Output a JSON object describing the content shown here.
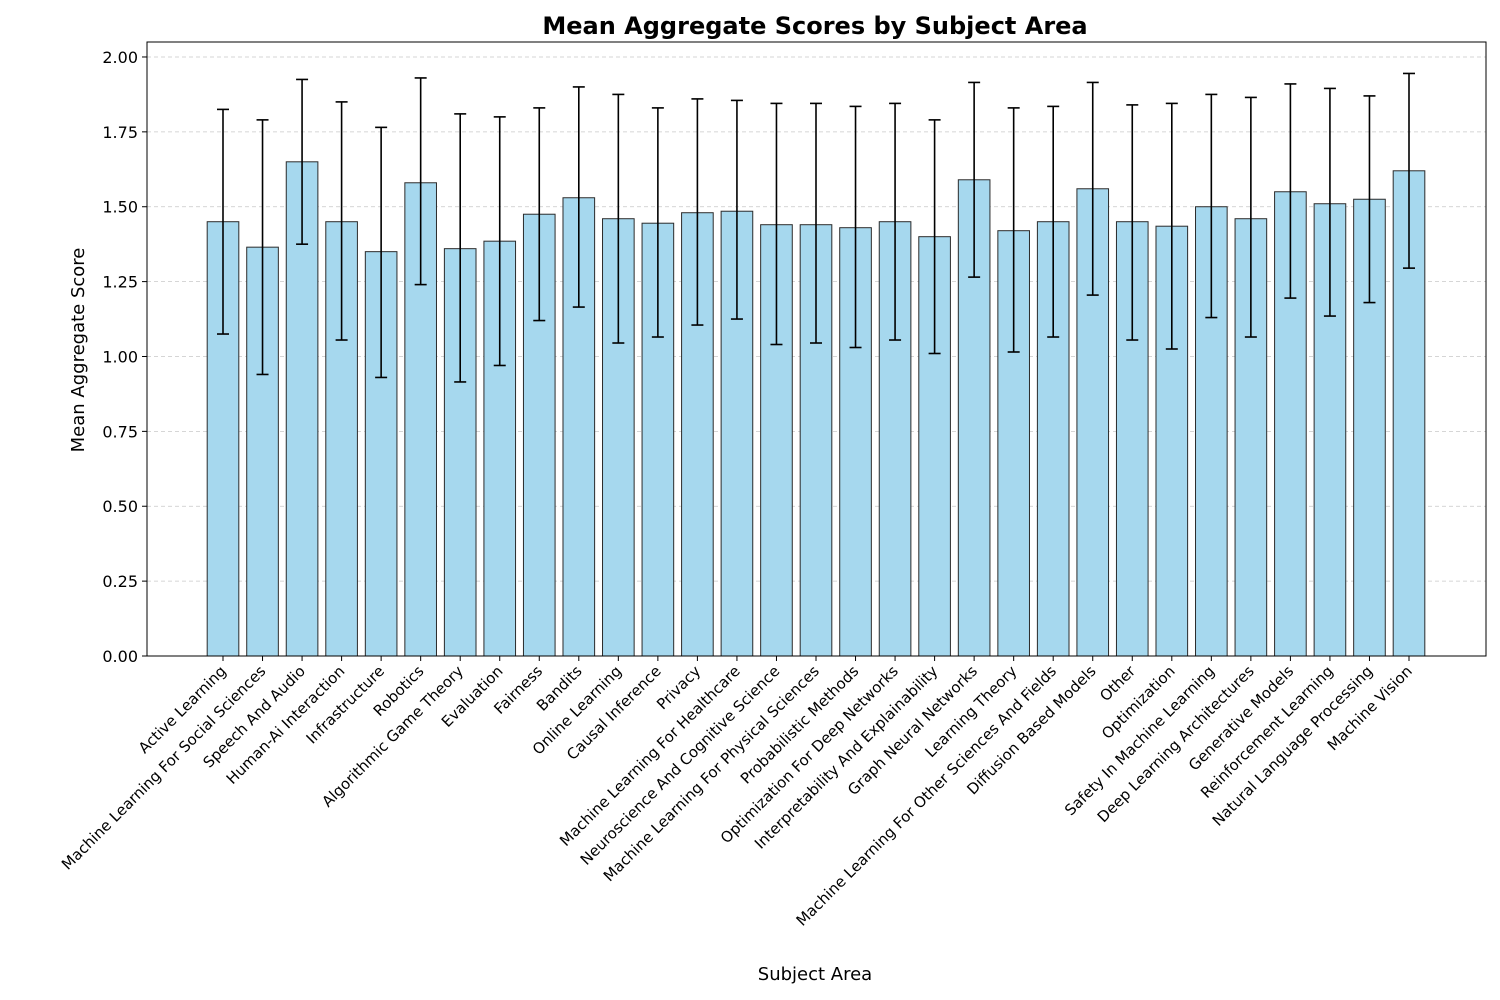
{
  "chart_data": {
    "type": "bar",
    "title": "Mean Aggregate Scores by Subject Area",
    "xlabel": "Subject Area",
    "ylabel": "Mean Aggregate Score",
    "ylim": [
      0,
      2.05
    ],
    "yticks": [
      "0.00",
      "0.25",
      "0.50",
      "0.75",
      "1.00",
      "1.25",
      "1.50",
      "1.75",
      "2.00"
    ],
    "grid": "horizontal dashed",
    "bar_color": "#a6d8ee",
    "bar_edge_color": "#2b2b2b",
    "error_bar_color": "#000000",
    "grid_color": "#c8c8c8",
    "categories": [
      "Active Learning",
      "Machine Learning For Social Sciences",
      "Speech And Audio",
      "Human-Ai Interaction",
      "Infrastructure",
      "Robotics",
      "Algorithmic Game Theory",
      "Evaluation",
      "Fairness",
      "Bandits",
      "Online Learning",
      "Causal Inference",
      "Privacy",
      "Machine Learning For Healthcare",
      "Neuroscience And Cognitive Science",
      "Machine Learning For Physical Sciences",
      "Probabilistic Methods",
      "Optimization For Deep Networks",
      "Interpretability And Explainability",
      "Graph Neural Networks",
      "Learning Theory",
      "Machine Learning For Other Sciences And Fields",
      "Diffusion Based Models",
      "Other",
      "Optimization",
      "Safety In Machine Learning",
      "Deep Learning Architectures",
      "Generative Models",
      "Reinforcement Learning",
      "Natural Language Processing",
      "Machine Vision"
    ],
    "values": [
      1.45,
      1.365,
      1.65,
      1.45,
      1.35,
      1.58,
      1.36,
      1.385,
      1.475,
      1.53,
      1.46,
      1.445,
      1.48,
      1.485,
      1.44,
      1.44,
      1.43,
      1.45,
      1.4,
      1.59,
      1.42,
      1.45,
      1.56,
      1.45,
      1.435,
      1.5,
      1.46,
      1.55,
      1.51,
      1.525,
      1.62
    ],
    "error_low": [
      1.075,
      0.94,
      1.375,
      1.055,
      0.93,
      1.24,
      0.915,
      0.97,
      1.12,
      1.165,
      1.045,
      1.065,
      1.105,
      1.125,
      1.04,
      1.045,
      1.03,
      1.055,
      1.01,
      1.265,
      1.015,
      1.065,
      1.205,
      1.055,
      1.025,
      1.13,
      1.065,
      1.195,
      1.135,
      1.18,
      1.295
    ],
    "error_high": [
      1.825,
      1.79,
      1.925,
      1.85,
      1.765,
      1.93,
      1.81,
      1.8,
      1.83,
      1.9,
      1.875,
      1.83,
      1.86,
      1.855,
      1.845,
      1.845,
      1.835,
      1.845,
      1.79,
      1.915,
      1.83,
      1.835,
      1.915,
      1.84,
      1.845,
      1.875,
      1.865,
      1.91,
      1.895,
      1.87,
      1.945
    ]
  }
}
